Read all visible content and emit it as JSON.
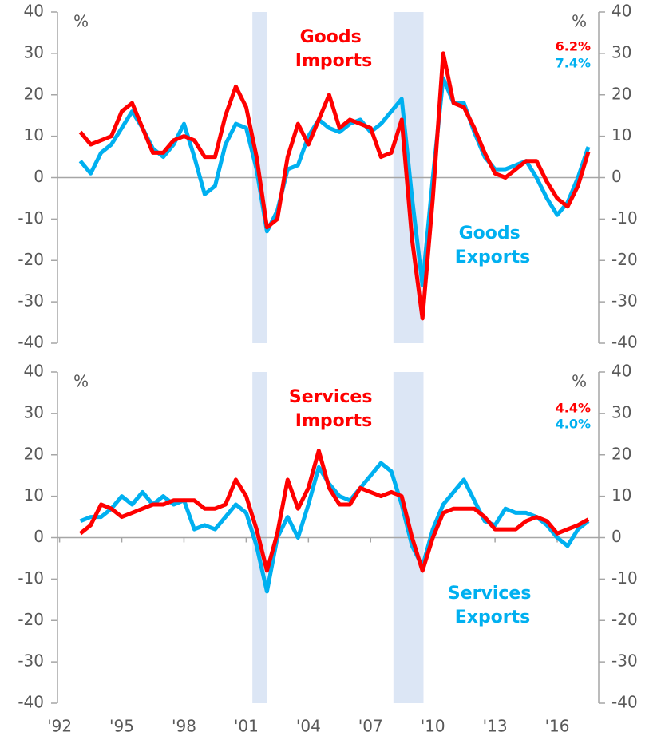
{
  "chart_data": [
    {
      "type": "line",
      "y_unit": "%",
      "y2_unit": "%",
      "xlim": [
        1991.9,
        2018
      ],
      "ylim": [
        -40,
        40
      ],
      "yticks": [
        -40,
        -30,
        -20,
        -10,
        0,
        10,
        20,
        30,
        40
      ],
      "y2lim": [
        -40,
        40
      ],
      "y2ticks": [
        -40,
        -30,
        -20,
        -10,
        0,
        10,
        20,
        30,
        40
      ],
      "recessions": [
        [
          2001.3,
          2002.0
        ],
        [
          2008.1,
          2009.55
        ]
      ],
      "recession_color": "#dce6f5",
      "x": [
        1993,
        1993.5,
        1994,
        1994.5,
        1995,
        1995.5,
        1996,
        1996.5,
        1997,
        1997.5,
        1998,
        1998.5,
        1999,
        1999.5,
        2000,
        2000.5,
        2001,
        2001.5,
        2002,
        2002.5,
        2003,
        2003.5,
        2004,
        2004.5,
        2005,
        2005.5,
        2006,
        2006.5,
        2007,
        2007.5,
        2008,
        2008.5,
        2009,
        2009.5,
        2010,
        2010.5,
        2011,
        2011.5,
        2012,
        2012.5,
        2013,
        2013.5,
        2014,
        2014.5,
        2015,
        2015.5,
        2016,
        2016.5,
        2017,
        2017.5
      ],
      "series": [
        {
          "name": "Goods Exports",
          "color": "#00b0f0",
          "end_label": "7.4%",
          "values": [
            4,
            1,
            6,
            8,
            12,
            16,
            12,
            7,
            5,
            8,
            13,
            5,
            -4,
            -2,
            8,
            13,
            12,
            2,
            -13,
            -8,
            2,
            3,
            10,
            14,
            12,
            11,
            13,
            14,
            11,
            13,
            16,
            19,
            -5,
            -26,
            0,
            24,
            18,
            18,
            11,
            5,
            2,
            2,
            3,
            4,
            0,
            -5,
            -9,
            -6,
            0,
            7.4
          ]
        },
        {
          "name": "Goods Imports",
          "color": "#ff0000",
          "end_label": "6.2%",
          "values": [
            11,
            8,
            9,
            10,
            16,
            18,
            12,
            6,
            6,
            9,
            10,
            9,
            5,
            5,
            15,
            22,
            17,
            5,
            -12,
            -10,
            5,
            13,
            8,
            14,
            20,
            12,
            14,
            13,
            12,
            5,
            6,
            14,
            -15,
            -34,
            -5,
            30,
            18,
            17,
            12,
            6,
            1,
            0,
            2,
            4,
            4,
            -1,
            -5,
            -7,
            -2,
            6.2
          ]
        }
      ]
    },
    {
      "type": "line",
      "y_unit": "%",
      "y2_unit": "%",
      "xlim": [
        1991.9,
        2018
      ],
      "xticks": [
        {
          "value": 1992,
          "label": "'92"
        },
        {
          "value": 1995,
          "label": "'95"
        },
        {
          "value": 1998,
          "label": "'98"
        },
        {
          "value": 2001,
          "label": "'01"
        },
        {
          "value": 2004,
          "label": "'04"
        },
        {
          "value": 2007,
          "label": "'07"
        },
        {
          "value": 2010,
          "label": "'10"
        },
        {
          "value": 2013,
          "label": "'13"
        },
        {
          "value": 2016,
          "label": "'16"
        }
      ],
      "ylim": [
        -40,
        40
      ],
      "yticks": [
        -40,
        -30,
        -20,
        -10,
        0,
        10,
        20,
        30,
        40
      ],
      "y2lim": [
        -40,
        40
      ],
      "y2ticks": [
        -40,
        -30,
        -20,
        -10,
        0,
        10,
        20,
        30,
        40
      ],
      "recessions": [
        [
          2001.3,
          2002.0
        ],
        [
          2008.1,
          2009.55
        ]
      ],
      "recession_color": "#dce6f5",
      "x": [
        1993,
        1993.5,
        1994,
        1994.5,
        1995,
        1995.5,
        1996,
        1996.5,
        1997,
        1997.5,
        1998,
        1998.5,
        1999,
        1999.5,
        2000,
        2000.5,
        2001,
        2001.5,
        2002,
        2002.5,
        2003,
        2003.5,
        2004,
        2004.5,
        2005,
        2005.5,
        2006,
        2006.5,
        2007,
        2007.5,
        2008,
        2008.5,
        2009,
        2009.5,
        2010,
        2010.5,
        2011,
        2011.5,
        2012,
        2012.5,
        2013,
        2013.5,
        2014,
        2014.5,
        2015,
        2015.5,
        2016,
        2016.5,
        2017,
        2017.5
      ],
      "series": [
        {
          "name": "Services Exports",
          "color": "#00b0f0",
          "end_label": "4.0%",
          "values": [
            4,
            5,
            5,
            7,
            10,
            8,
            11,
            8,
            10,
            8,
            9,
            2,
            3,
            2,
            5,
            8,
            6,
            -2,
            -13,
            0,
            5,
            0,
            8,
            17,
            13,
            10,
            9,
            12,
            15,
            18,
            16,
            8,
            -2,
            -7,
            2,
            8,
            11,
            14,
            9,
            4,
            3,
            7,
            6,
            6,
            5,
            3,
            0,
            -2,
            2,
            4.0
          ]
        },
        {
          "name": "Services Imports",
          "color": "#ff0000",
          "end_label": "4.4%",
          "values": [
            1,
            3,
            8,
            7,
            5,
            6,
            7,
            8,
            8,
            9,
            9,
            9,
            7,
            7,
            8,
            14,
            10,
            2,
            -8,
            1,
            14,
            7,
            12,
            21,
            12,
            8,
            8,
            12,
            11,
            10,
            11,
            10,
            0,
            -8,
            0,
            6,
            7,
            7,
            7,
            5,
            2,
            2,
            2,
            4,
            5,
            4,
            1,
            2,
            3,
            4.4
          ]
        }
      ]
    }
  ]
}
